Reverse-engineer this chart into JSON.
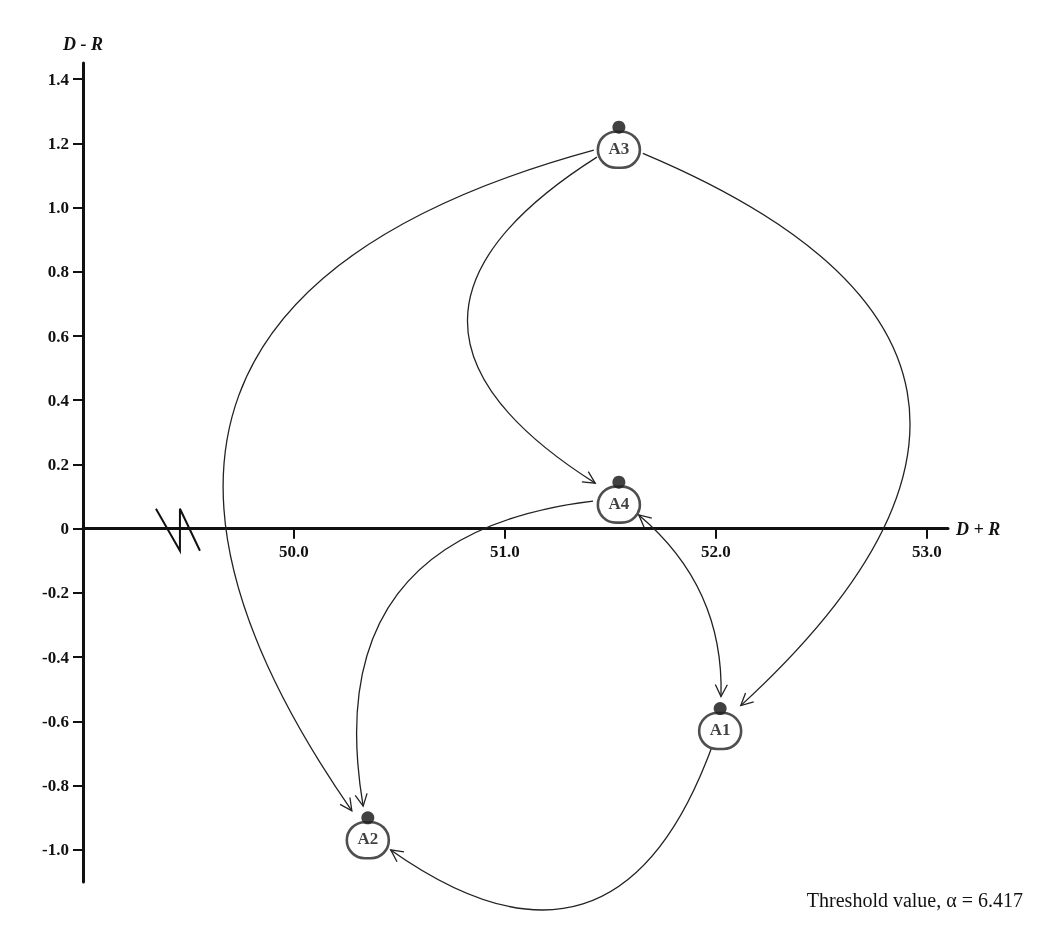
{
  "chart_data": {
    "type": "scatter",
    "xlabel": "D + R",
    "ylabel": "D - R",
    "xlim": [
      49.0,
      53.1
    ],
    "ylim": [
      -1.1,
      1.45
    ],
    "xticks": [
      {
        "value": 50,
        "label": "50.0"
      },
      {
        "value": 51,
        "label": "51.0"
      },
      {
        "value": 52,
        "label": "52.0"
      },
      {
        "value": 53,
        "label": "53.0"
      }
    ],
    "yticks": [
      {
        "value": -1,
        "label": "-1.0"
      },
      -0.8,
      -0.6,
      -0.4,
      -0.2,
      0,
      0.2,
      0.4,
      0.6,
      0.8,
      {
        "value": 1,
        "label": "1.0"
      },
      1.2,
      1.4
    ],
    "series": [
      {
        "name": "A1",
        "color": "#111111",
        "x": [
          52.02
        ],
        "values": [
          -0.56
        ]
      },
      {
        "name": "A2",
        "color": "#111111",
        "x": [
          50.35
        ],
        "values": [
          -0.9
        ]
      },
      {
        "name": "A3",
        "color": "#111111",
        "x": [
          51.54
        ],
        "values": [
          1.25
        ]
      },
      {
        "name": "A4",
        "color": "#111111",
        "x": [
          51.54
        ],
        "values": [
          0.145
        ]
      }
    ],
    "marker": "circle",
    "grid": false,
    "legend": false,
    "annotations": [
      "Threshold value, α = 6.417"
    ]
  }
}
